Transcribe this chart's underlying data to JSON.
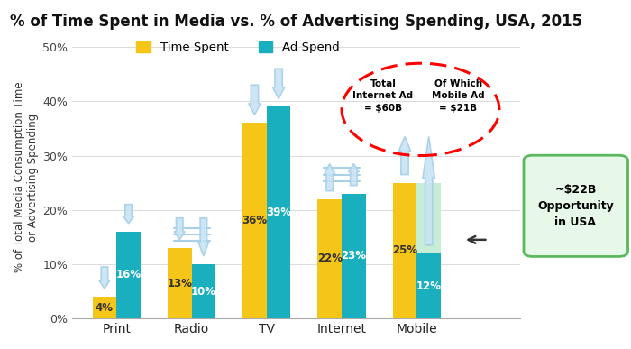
{
  "title": "% of Time Spent in Media vs. % of Advertising Spending, USA, 2015",
  "ylabel": "% of Total Media Consumption Time\nor Advertising Spending",
  "categories": [
    "Print",
    "Radio",
    "TV",
    "Internet",
    "Mobile"
  ],
  "time_spent": [
    4,
    13,
    36,
    22,
    25
  ],
  "ad_spend": [
    16,
    10,
    39,
    23,
    12
  ],
  "time_spent_color": "#F5C518",
  "ad_spend_color": "#1AAFBE",
  "mobile_opportunity_color": "#C8EDD6",
  "bar_width": 0.32,
  "ylim": [
    0,
    52
  ],
  "yticks": [
    0,
    10,
    20,
    30,
    40,
    50
  ],
  "ytick_labels": [
    "0%",
    "10%",
    "20%",
    "30%",
    "40%",
    "50%"
  ],
  "legend_time_spent": "Time Spent",
  "legend_ad_spend": "Ad Spend",
  "arrow_color": "#a8d0e8",
  "arrow_fill": "#c8e4f4",
  "title_fontsize": 12,
  "axis_fontsize": 9,
  "background_color": "#ffffff"
}
